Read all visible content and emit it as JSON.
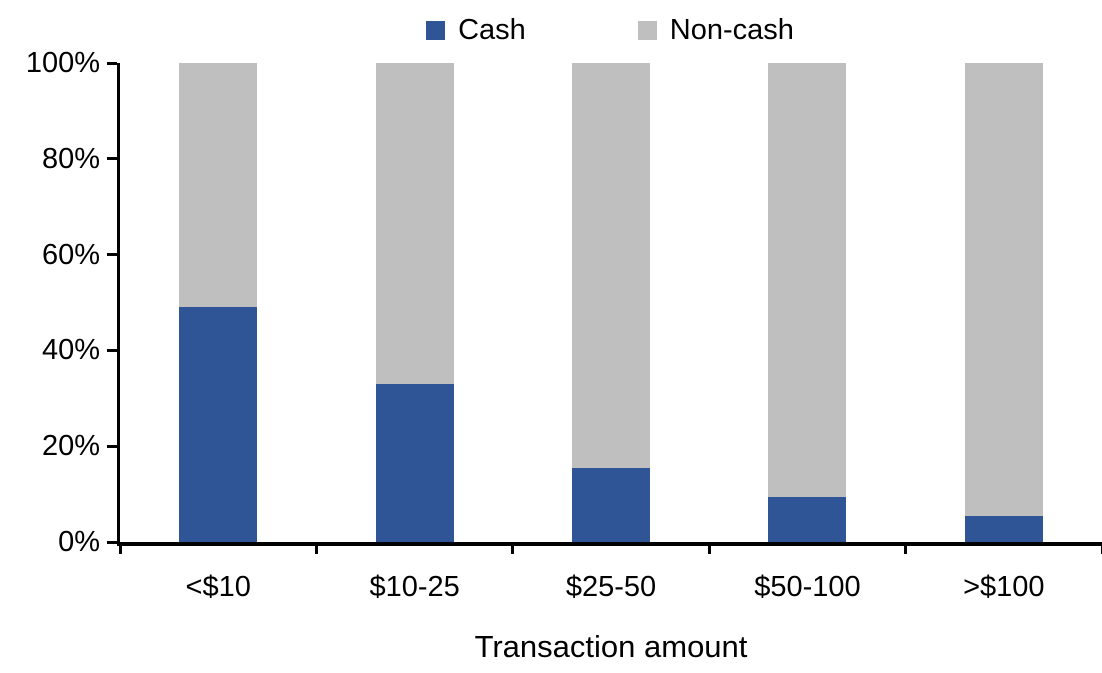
{
  "chart_data": {
    "type": "bar",
    "variant": "stacked-100-percent",
    "title": "",
    "categories": [
      "<$10",
      "$10-25",
      "$25-50",
      "$50-100",
      ">$100"
    ],
    "series": [
      {
        "name": "Cash",
        "color": "#2F5597",
        "values": [
          49,
          33,
          15.5,
          9.5,
          5.5
        ]
      },
      {
        "name": "Non-cash",
        "color": "#BFBFBF",
        "values": [
          51,
          67,
          84.5,
          90.5,
          94.5
        ]
      }
    ],
    "xlabel": "Transaction amount",
    "ylabel": "",
    "ylim": [
      0,
      100
    ],
    "yticks": [
      {
        "value": 0,
        "label": "0%"
      },
      {
        "value": 20,
        "label": "20%"
      },
      {
        "value": 40,
        "label": "40%"
      },
      {
        "value": 60,
        "label": "60%"
      },
      {
        "value": 80,
        "label": "80%"
      },
      {
        "value": 100,
        "label": "100%"
      }
    ],
    "legend_position": "top",
    "grid": false,
    "axis_color": "#000000",
    "background_color": "#FFFFFF"
  }
}
